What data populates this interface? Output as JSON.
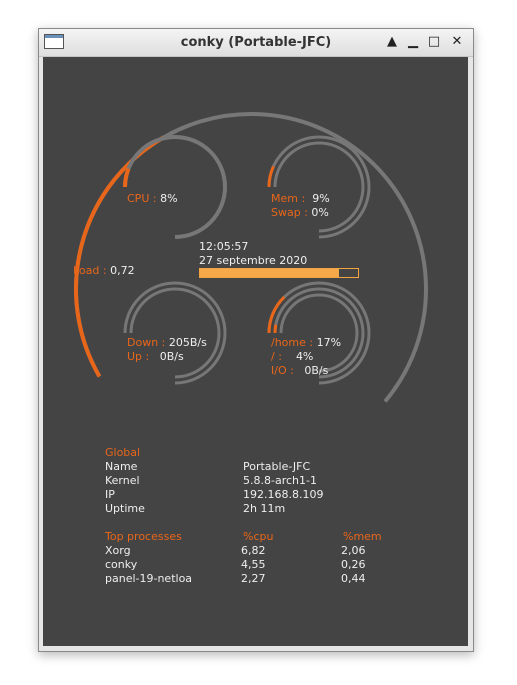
{
  "window": {
    "title": "conky (Portable-JFC)",
    "buttons": {
      "shade": "▲",
      "minimize": "▁",
      "maximize": "□",
      "close": "✕"
    }
  },
  "colors": {
    "accent": "#e8661a",
    "panel_bg": "#444444",
    "ring": "#777777",
    "text": "#eeeeee",
    "bar": "#f7a84a"
  },
  "gauges": {
    "load": {
      "label": "Load",
      "sep": ":",
      "value": "0,72",
      "fill": 0.36
    },
    "cpu": {
      "label": "CPU",
      "sep": ":",
      "value": "8%",
      "fill": 0.08
    },
    "mem": {
      "label": "Mem",
      "sep": ":",
      "value": "9%",
      "fill": 0.09
    },
    "swap": {
      "label": "Swap",
      "sep": ":",
      "value": "0%",
      "fill": 0.0
    },
    "down": {
      "label": "Down",
      "sep": ":",
      "value": "205B/s",
      "fill": 0.0
    },
    "up": {
      "label": "Up",
      "sep": ":",
      "value": "0B/s",
      "fill": 0.0
    },
    "home": {
      "label": "/home",
      "sep": ":",
      "value": "17%",
      "fill": 0.17
    },
    "root": {
      "label": "/",
      "sep": ":",
      "value": "4%",
      "fill": 0.04
    },
    "io": {
      "label": "I/O",
      "sep": ":",
      "value": "0B/s",
      "fill": 0.0
    }
  },
  "clock": {
    "time": "12:05:57",
    "date": "27 septembre 2020",
    "progress": 0.88
  },
  "global": {
    "heading": "Global",
    "rows": [
      {
        "key": "Name",
        "value": "Portable-JFC"
      },
      {
        "key": "Kernel",
        "value": "5.8.8-arch1-1"
      },
      {
        "key": "IP",
        "value": "192.168.8.109"
      },
      {
        "key": "Uptime",
        "value": "2h 11m"
      }
    ]
  },
  "processes": {
    "headers": {
      "name": "Top processes",
      "cpu": "%cpu",
      "mem": "%mem"
    },
    "rows": [
      {
        "name": "Xorg",
        "cpu": "6,82",
        "mem": "2,06"
      },
      {
        "name": "conky",
        "cpu": "4,55",
        "mem": "0,26"
      },
      {
        "name": "panel-19-netloa",
        "cpu": "2,27",
        "mem": "0,44"
      }
    ]
  }
}
